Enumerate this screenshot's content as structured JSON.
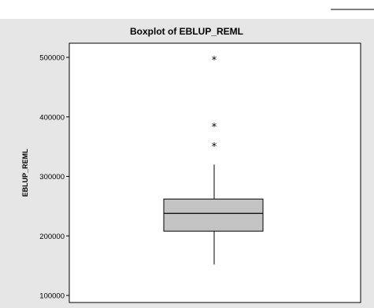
{
  "chart_data": {
    "type": "boxplot",
    "title": "Boxplot of EBLUP_REML",
    "xlabel": "",
    "ylabel": "EBLUP_REML",
    "ylim": [
      100000,
      500000
    ],
    "yticks": [
      100000,
      200000,
      300000,
      400000,
      500000
    ],
    "ytick_labels": [
      "100000",
      "200000",
      "300000",
      "400000",
      "500000"
    ],
    "box": {
      "whisker_low": 152000,
      "q1": 208000,
      "median": 238000,
      "q3": 262000,
      "whisker_high": 320000
    },
    "outliers": [
      355000,
      388000,
      500000
    ],
    "outlier_marker": "*",
    "grid": false
  },
  "colors": {
    "background": "#e6e6e6",
    "plot_area": "#ffffff",
    "box_fill": "#c3c3c3",
    "lines": "#000000"
  }
}
